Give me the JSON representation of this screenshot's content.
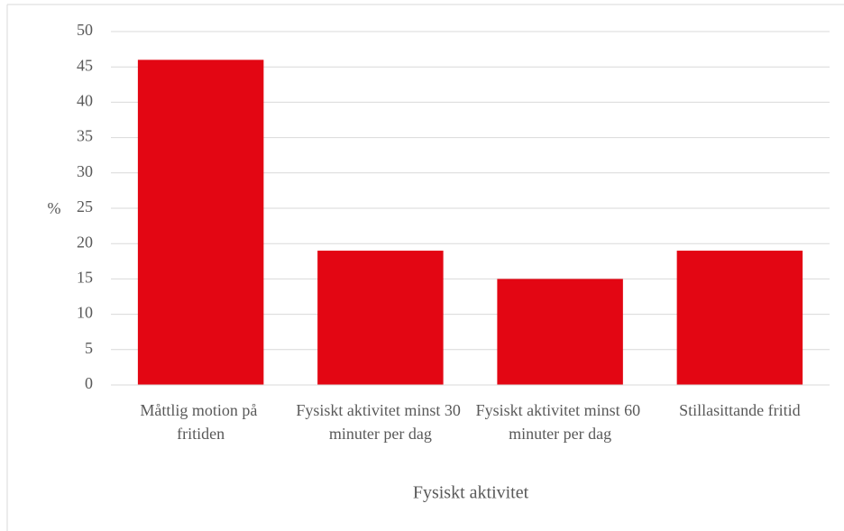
{
  "chart_data": {
    "type": "bar",
    "x_label": "Fysiskt aktivitet",
    "y_label": "%",
    "categories": [
      "Måttlig motion på fritiden",
      "Fysiskt aktivitet minst 30 minuter per dag",
      "Fysiskt aktivitet minst 60 minuter per dag",
      "Stillasittande fritid"
    ],
    "values": [
      46,
      19,
      15,
      19
    ],
    "color": "#e30613",
    "ylim": [
      0,
      50
    ],
    "yticks": [
      0,
      5,
      10,
      15,
      20,
      25,
      30,
      35,
      40,
      45,
      50
    ],
    "grid": true
  }
}
